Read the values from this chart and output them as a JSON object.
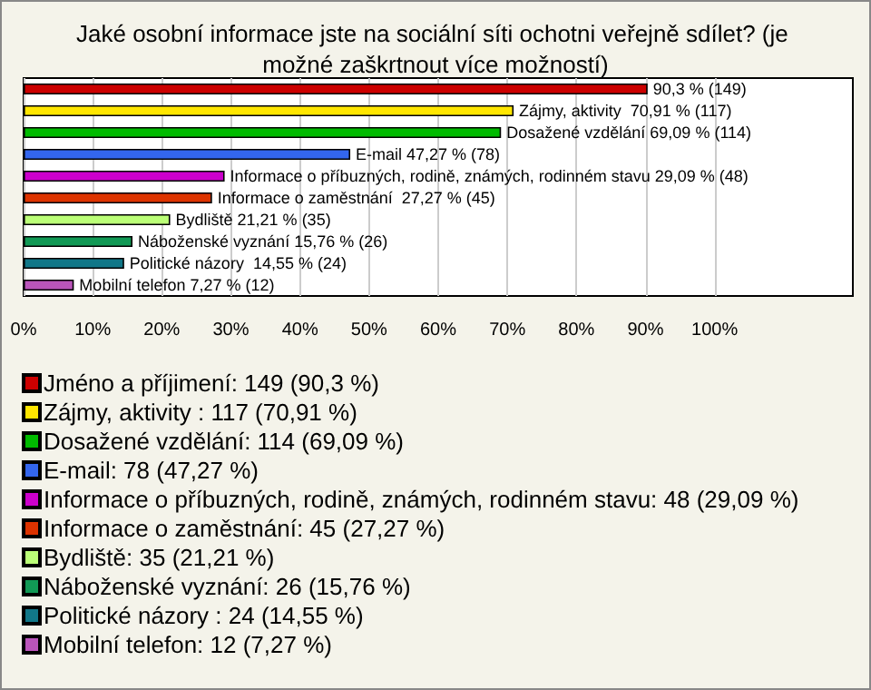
{
  "chart_data": {
    "type": "bar",
    "orientation": "horizontal",
    "title": "Jaké osobní informace jste na sociální síti ochotni veřejně sdílet? (je možné zaškrtnout více možností)",
    "categories": [
      null,
      null,
      null,
      null,
      null,
      null,
      null,
      null,
      null,
      null
    ],
    "series": [
      {
        "name": "Jméno a příjimení: 149 (90,3 %)",
        "color": "#cc0000",
        "values": [
          90.3,
          null,
          null,
          null,
          null,
          null,
          null,
          null,
          null,
          null
        ],
        "value_labels": [
          "90,3 % (149)",
          null,
          null,
          null,
          null,
          null,
          null,
          null,
          null,
          null
        ]
      },
      {
        "name": "Zájmy, aktivity : 117 (70,91 %)",
        "color": "#ffe600",
        "values": [
          null,
          70.91,
          null,
          null,
          null,
          null,
          null,
          null,
          null,
          null
        ],
        "value_labels": [
          null,
          "Zájmy, aktivity  70,91 % (117)",
          null,
          null,
          null,
          null,
          null,
          null,
          null,
          null
        ]
      },
      {
        "name": "Dosažené vzdělání: 114 (69,09 %)",
        "color": "#00bb00",
        "values": [
          null,
          null,
          69.09,
          null,
          null,
          null,
          null,
          null,
          null,
          null
        ],
        "value_labels": [
          null,
          null,
          "Dosažené vzdělání 69,09 % (114)",
          null,
          null,
          null,
          null,
          null,
          null,
          null
        ]
      },
      {
        "name": "E-mail: 78 (47,27 %)",
        "color": "#3366ee",
        "values": [
          null,
          null,
          null,
          47.27,
          null,
          null,
          null,
          null,
          null,
          null
        ],
        "value_labels": [
          null,
          null,
          null,
          "E-mail 47,27 % (78)",
          null,
          null,
          null,
          null,
          null,
          null
        ]
      },
      {
        "name": "Informace o příbuzných, rodině, známých, rodinném stavu: 48 (29,09 %)",
        "color": "#cc00cc",
        "values": [
          null,
          null,
          null,
          null,
          29.09,
          null,
          null,
          null,
          null,
          null
        ],
        "value_labels": [
          null,
          null,
          null,
          null,
          "Informace o příbuzných, rodině, známých, rodinném stavu 29,09 % (48)",
          null,
          null,
          null,
          null,
          null
        ]
      },
      {
        "name": "Informace o zaměstnání: 45 (27,27 %)",
        "color": "#dd3300",
        "values": [
          null,
          null,
          null,
          null,
          null,
          27.27,
          null,
          null,
          null,
          null
        ],
        "value_labels": [
          null,
          null,
          null,
          null,
          null,
          "Informace o zaměstnání  27,27 % (45)",
          null,
          null,
          null,
          null
        ]
      },
      {
        "name": "Bydliště: 35 (21,21 %)",
        "color": "#bbff77",
        "values": [
          null,
          null,
          null,
          null,
          null,
          null,
          21.21,
          null,
          null,
          null
        ],
        "value_labels": [
          null,
          null,
          null,
          null,
          null,
          null,
          "Bydliště 21,21 % (35)",
          null,
          null,
          null
        ]
      },
      {
        "name": "Náboženské vyznání: 26 (15,76 %)",
        "color": "#119955",
        "values": [
          null,
          null,
          null,
          null,
          null,
          null,
          null,
          15.76,
          null,
          null
        ],
        "value_labels": [
          null,
          null,
          null,
          null,
          null,
          null,
          null,
          "Náboženské vyznání 15,76 % (26)",
          null,
          null
        ]
      },
      {
        "name": "Politické názory : 24 (14,55 %)",
        "color": "#117788",
        "values": [
          null,
          null,
          null,
          null,
          null,
          null,
          null,
          null,
          14.55,
          null
        ],
        "value_labels": [
          null,
          null,
          null,
          null,
          null,
          null,
          null,
          null,
          "Politické názory  14,55 % (24)",
          null
        ]
      },
      {
        "name": "Mobilní telefon: 12 (7,27 %)",
        "color": "#bb55bb",
        "values": [
          null,
          null,
          null,
          null,
          null,
          null,
          null,
          null,
          null,
          7.27
        ],
        "value_labels": [
          null,
          null,
          null,
          null,
          null,
          null,
          null,
          null,
          null,
          "Mobilní telefon 7,27 % (12)"
        ]
      }
    ],
    "xlim": [
      0,
      120
    ],
    "xticks": [
      {
        "value": 0,
        "label": "0%"
      },
      {
        "value": 10,
        "label": "10%"
      },
      {
        "value": 20,
        "label": "20%"
      },
      {
        "value": 30,
        "label": "30%"
      },
      {
        "value": 40,
        "label": "40%"
      },
      {
        "value": 50,
        "label": "50%"
      },
      {
        "value": 60,
        "label": "60%"
      },
      {
        "value": 70,
        "label": "70%"
      },
      {
        "value": 80,
        "label": "80%"
      },
      {
        "value": 90,
        "label": "90%"
      },
      {
        "value": 100,
        "label": "100%"
      }
    ],
    "grid": "x",
    "legend": "bottom"
  }
}
